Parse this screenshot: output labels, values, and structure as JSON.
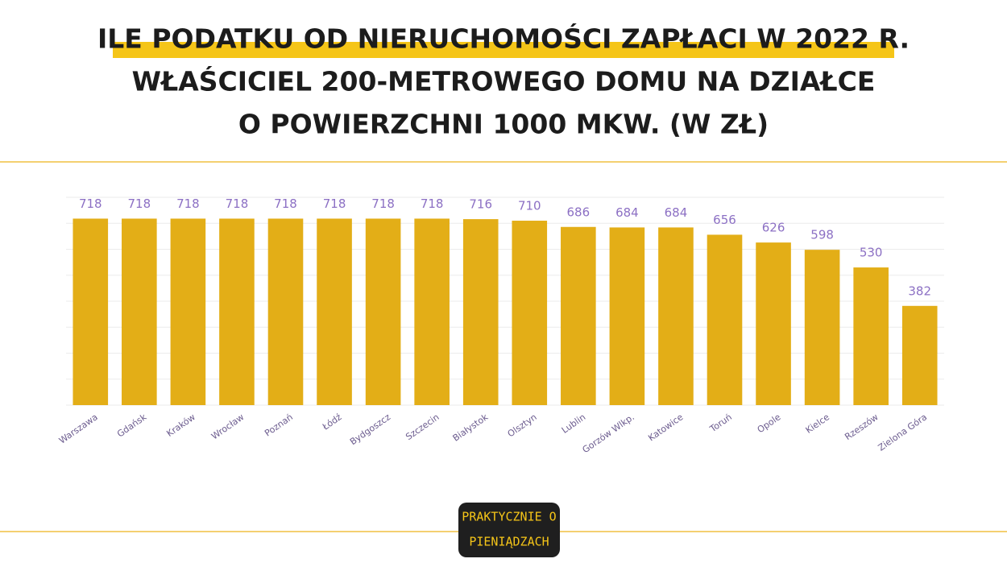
{
  "chart_data": {
    "type": "bar",
    "title": [
      "ILE PODATKU OD NIERUCHOMOŚCI ZAPŁACI W 2022 R.",
      "WŁAŚCICIEL 200-METROWEGO DOMU NA DZIAŁCE",
      "O POWIERZCHNI 1000 MKW. (W ZŁ)"
    ],
    "categories": [
      "Warszawa",
      "Gdańsk",
      "Kraków",
      "Wrocław",
      "Poznań",
      "Łódź",
      "Bydgoszcz",
      "Szczecin",
      "Białystok",
      "Olsztyn",
      "Lublin",
      "Gorzów Wlkp.",
      "Katowice",
      "Toruń",
      "Opole",
      "Kielce",
      "Rzeszów",
      "Zielona Góra"
    ],
    "values": [
      718,
      718,
      718,
      718,
      718,
      718,
      718,
      718,
      716,
      710,
      686,
      684,
      684,
      656,
      626,
      598,
      530,
      382
    ],
    "color": "#e3ae17",
    "ylim": [
      0,
      800
    ],
    "yticks": [
      0,
      100,
      200,
      300,
      400,
      500,
      600,
      700,
      800
    ],
    "grid": true
  },
  "brand": [
    "PRAKTYCZNIE O",
    "PIENIĄDZACH"
  ]
}
